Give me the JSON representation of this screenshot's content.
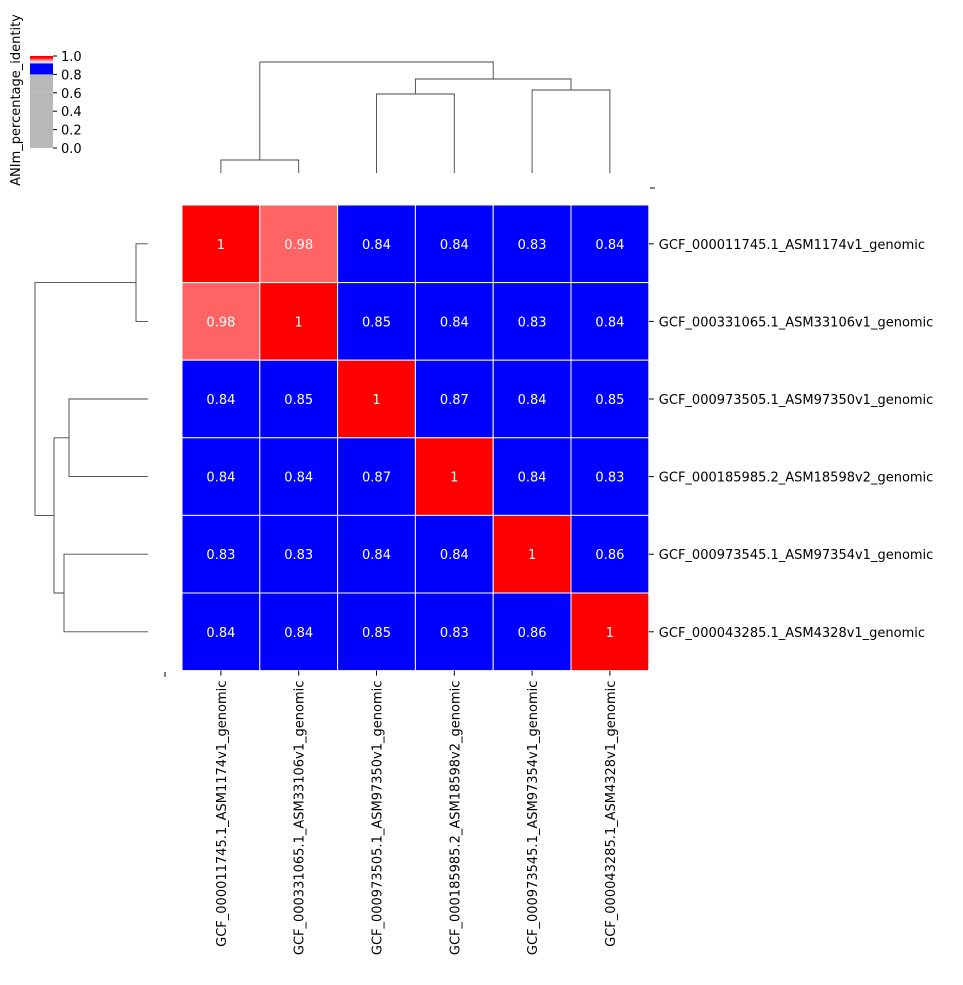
{
  "chart_data": {
    "type": "heatmap",
    "title": "",
    "row_labels": [
      "GCF_000011745.1_ASM1174v1_genomic",
      "GCF_000331065.1_ASM33106v1_genomic",
      "GCF_000973505.1_ASM97350v1_genomic",
      "GCF_000185985.2_ASM18598v2_genomic",
      "GCF_000973545.1_ASM97354v1_genomic",
      "GCF_000043285.1_ASM4328v1_genomic"
    ],
    "col_labels": [
      "GCF_000011745.1_ASM1174v1_genomic",
      "GCF_000331065.1_ASM33106v1_genomic",
      "GCF_000973505.1_ASM97350v1_genomic",
      "GCF_000185985.2_ASM18598v2_genomic",
      "GCF_000973545.1_ASM97354v1_genomic",
      "GCF_000043285.1_ASM4328v1_genomic"
    ],
    "values": [
      [
        1,
        0.98,
        0.84,
        0.84,
        0.83,
        0.84
      ],
      [
        0.98,
        1,
        0.85,
        0.84,
        0.83,
        0.84
      ],
      [
        0.84,
        0.85,
        1,
        0.87,
        0.84,
        0.85
      ],
      [
        0.84,
        0.84,
        0.87,
        1,
        0.84,
        0.83
      ],
      [
        0.83,
        0.83,
        0.84,
        0.84,
        1,
        0.86
      ],
      [
        0.84,
        0.84,
        0.85,
        0.83,
        0.86,
        1
      ]
    ],
    "cell_labels": [
      [
        "1",
        "0.98",
        "0.84",
        "0.84",
        "0.83",
        "0.84"
      ],
      [
        "0.98",
        "1",
        "0.85",
        "0.84",
        "0.83",
        "0.84"
      ],
      [
        "0.84",
        "0.85",
        "1",
        "0.87",
        "0.84",
        "0.85"
      ],
      [
        "0.84",
        "0.84",
        "0.87",
        "1",
        "0.84",
        "0.83"
      ],
      [
        "0.83",
        "0.83",
        "0.84",
        "0.84",
        "1",
        "0.86"
      ],
      [
        "0.84",
        "0.84",
        "0.85",
        "0.83",
        "0.86",
        "1"
      ]
    ],
    "colorbar": {
      "label": "ANIm_percentage_identity",
      "range": [
        0,
        1
      ],
      "ticks": [
        "0.0",
        "0.2",
        "0.4",
        "0.6",
        "0.8",
        "1.0"
      ],
      "tick_values": [
        0,
        0.2,
        0.4,
        0.6,
        0.8,
        1.0
      ]
    },
    "colors": {
      "low": "#b8b8b8",
      "mid": "#0000ff",
      "high": "#ff0000",
      "near_high": "#ff6464",
      "dendrogram": "#444444",
      "grid": "#ffffff",
      "cell_text": "#ffffff",
      "label_text": "#000000"
    }
  }
}
